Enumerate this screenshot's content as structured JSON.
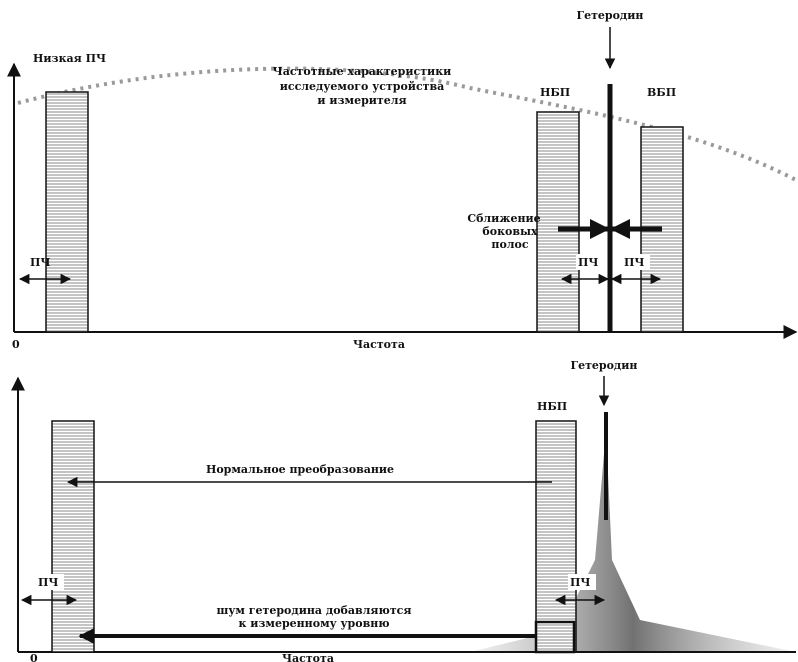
{
  "top": {
    "lo_label": "Гетеродин",
    "low_if_label": "Низкая ПЧ",
    "curve_label": [
      "Частотные характеристики",
      "исследуемого устройства",
      "и измерителя"
    ],
    "lsb_label": "НБП",
    "usb_label": "ВБП",
    "convergence_label": [
      "Сближение",
      "боковых",
      "полос"
    ],
    "if_label": "ПЧ",
    "zero_label": "0",
    "x_axis_label": "Частота"
  },
  "bottom": {
    "lo_label": "Гетеродин",
    "lsb_label": "НБП",
    "normal_conversion_label": "Нормальное преобразование",
    "noise_label": [
      "шум гетеродина добавляются",
      "к измеренному уровню"
    ],
    "if_label": "ПЧ",
    "zero_label": "0",
    "x_axis_label": "Частота"
  },
  "colors": {
    "ink": "#111111",
    "dotted_curve": "#9a9a9a",
    "hatch_stroke": "#888888",
    "noise_fill": "#7a7a7a"
  }
}
